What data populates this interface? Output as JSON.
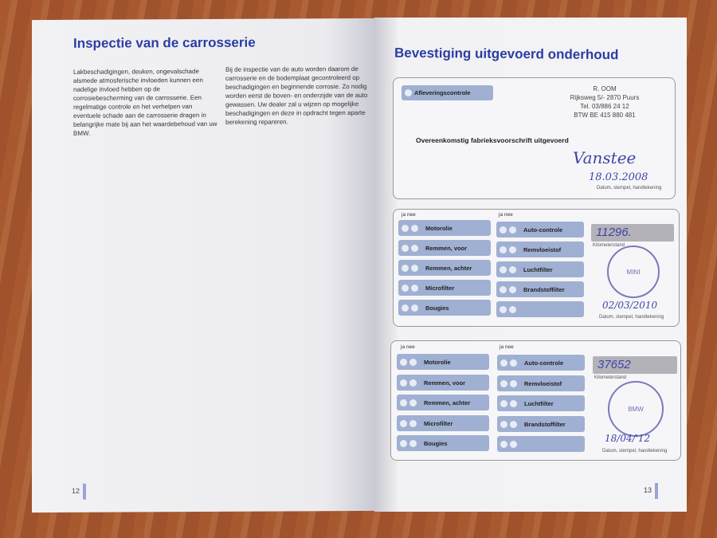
{
  "left_page": {
    "title": "Inspectie van de carrosserie",
    "col1": "Lakbeschadigingen, deuken, ongevalschade alsmede atmosferische invloeden kunnen een nadelige invloed hebben op de corrosiebescherming van de carrosserie. Een regelmatige controle en het verhelpen van eventuele schade aan de carrosserie dragen in belangrijke mate bij aan het waardebehoud van uw BMW.",
    "col2": "Bij de inspectie van de auto worden daarom de carrosserie en de bodemplaat gecontroleerd op beschadigingen en beginnende corrosie. Zo nodig worden eerst de boven- en onderzijde van de auto gewassen. Uw dealer zal u wijzen op mogelijke beschadigingen en deze in opdracht tegen aparte berekening repareren.",
    "page_number": "12"
  },
  "right_page": {
    "title": "Bevestiging uitgevoerd onderhoud",
    "page_number": "13",
    "delivery": {
      "chip": "Afleveringscontrole",
      "dealer_lines": [
        "R.      OOM",
        "Rijksweg 5/- 2870 Puurs",
        "Tel. 03/886 24 12",
        "BTW BE 415 880 481"
      ],
      "statement": "Overeenkomstig fabrieksvoorschrift uitgevoerd",
      "date": "18.03.2008",
      "caption": "Datum, stempel, handtekening"
    },
    "services": [
      {
        "ja": "ja",
        "nee": "nee",
        "left": [
          "Motorolie",
          "Remmen, voor",
          "Remmen, achter",
          "Microfilter",
          "Bougies"
        ],
        "right": [
          "Auto-controle",
          "Remvloeistof",
          "Luchtfilter",
          "Brandstoffilter",
          ""
        ],
        "km": "11296.",
        "km_caption": "Kilometerstand",
        "stamp": "MINI",
        "date": "02/03/2010",
        "caption": "Datum, stempel, handtekening"
      },
      {
        "ja": "ja",
        "nee": "nee",
        "left": [
          "Motorolie",
          "Remmen, voor",
          "Remmen, achter",
          "Microfilter",
          "Bougies"
        ],
        "right": [
          "Auto-controle",
          "Remvloeistof",
          "Luchtfilter",
          "Brandstoffilter",
          ""
        ],
        "km": "37652",
        "km_caption": "Kilometerstand",
        "stamp": "BMW",
        "date": "18/04/'12",
        "caption": "Datum, stempel, handtekening"
      }
    ]
  },
  "colors": {
    "title_blue": "#2b3da3",
    "chip_blue": "#9fb0d2",
    "ink": "#3f44a8"
  }
}
